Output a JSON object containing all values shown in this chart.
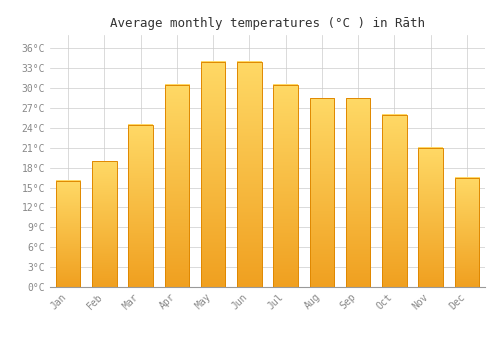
{
  "title": "Average monthly temperatures (°C ) in Rāth",
  "months": [
    "Jan",
    "Feb",
    "Mar",
    "Apr",
    "May",
    "Jun",
    "Jul",
    "Aug",
    "Sep",
    "Oct",
    "Nov",
    "Dec"
  ],
  "values": [
    16.0,
    19.0,
    24.5,
    30.5,
    34.0,
    34.0,
    30.5,
    28.5,
    28.5,
    26.0,
    21.0,
    16.5
  ],
  "bar_color_top": "#FFD966",
  "bar_color_bottom": "#F0A020",
  "bar_edge_color": "#E08800",
  "background_color": "#ffffff",
  "grid_color": "#cccccc",
  "ylim": [
    0,
    38
  ],
  "yticks": [
    0,
    3,
    6,
    9,
    12,
    15,
    18,
    21,
    24,
    27,
    30,
    33,
    36
  ],
  "title_fontsize": 9,
  "tick_fontsize": 7,
  "tick_color": "#888888",
  "font_family": "monospace"
}
